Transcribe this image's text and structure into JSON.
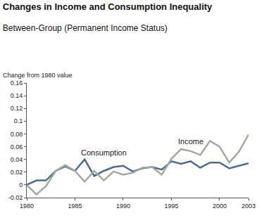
{
  "chart_data": {
    "type": "line",
    "title": "Changes in Income and Consumption Inequality",
    "subtitle": "Between-Group (Permanent Income Status)",
    "y_label": "Change from 1980 value",
    "x": [
      1980,
      1981,
      1982,
      1983,
      1984,
      1985,
      1986,
      1987,
      1988,
      1989,
      1990,
      1991,
      1992,
      1993,
      1994,
      1995,
      1996,
      1997,
      1998,
      1999,
      2000,
      2001,
      2002,
      2003
    ],
    "series": [
      {
        "name": "Consumption",
        "color": "#4a6b9c",
        "values": [
          0,
          0.007,
          0.007,
          0.022,
          0.029,
          0.022,
          0.04,
          0.014,
          0.022,
          0.028,
          0.03,
          0.021,
          0.026,
          0.028,
          0.024,
          0.037,
          0.033,
          0.037,
          0.027,
          0.035,
          0.035,
          0.026,
          0.03,
          0.034
        ]
      },
      {
        "name": "Income",
        "color": "#a3aa9b",
        "values": [
          0,
          -0.015,
          -0.002,
          0.022,
          0.031,
          0.022,
          0.005,
          0.022,
          0.007,
          0.021,
          0.016,
          0.019,
          0.027,
          0.028,
          0.016,
          0.041,
          0.056,
          0.053,
          0.047,
          0.069,
          0.06,
          0.035,
          0.052,
          0.079
        ]
      }
    ],
    "xlim": [
      1980,
      2003
    ],
    "xticks": [
      1980,
      1985,
      1990,
      1995,
      2000,
      2003
    ],
    "ylim": [
      -0.02,
      0.16
    ],
    "yticks": [
      -0.02,
      0,
      0.02,
      0.04,
      0.06,
      0.08,
      0.1,
      0.12,
      0.14,
      0.16
    ],
    "grid": false
  }
}
